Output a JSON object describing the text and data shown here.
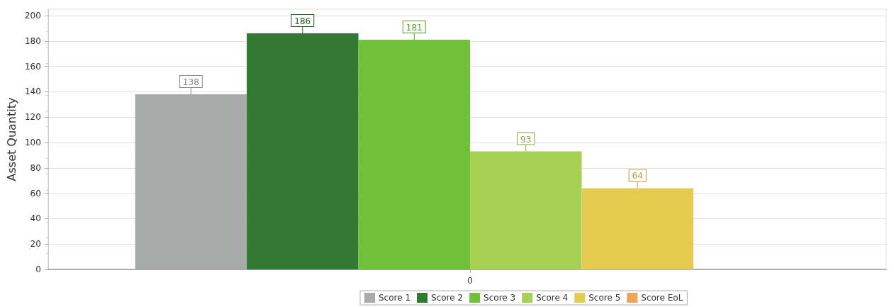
{
  "chart_data": {
    "type": "bar",
    "categories": [
      "0"
    ],
    "ylabel": "Asset Quantity",
    "ylim": [
      0,
      205
    ],
    "yticks": [
      0,
      20,
      40,
      60,
      80,
      100,
      120,
      140,
      160,
      180,
      200
    ],
    "grid": "y",
    "legend": "bottom",
    "series": [
      {
        "name": "Score 1",
        "color": "#a9abab",
        "values": [
          138
        ],
        "value_labels": [
          "138"
        ]
      },
      {
        "name": "Score 2",
        "color": "#327a33",
        "values": [
          186
        ],
        "value_labels": [
          "186"
        ]
      },
      {
        "name": "Score 3",
        "color": "#71c03a",
        "values": [
          181
        ],
        "value_labels": [
          "181"
        ]
      },
      {
        "name": "Score 4",
        "color": "#a6d152",
        "values": [
          93
        ],
        "value_labels": [
          "93"
        ]
      },
      {
        "name": "Score 5",
        "color": "#e4cc50",
        "values": [
          64
        ],
        "value_labels": [
          "64"
        ]
      },
      {
        "name": "Score EoL",
        "color": "#f0a45c",
        "values": [
          0
        ],
        "value_labels": [
          null
        ]
      }
    ]
  }
}
